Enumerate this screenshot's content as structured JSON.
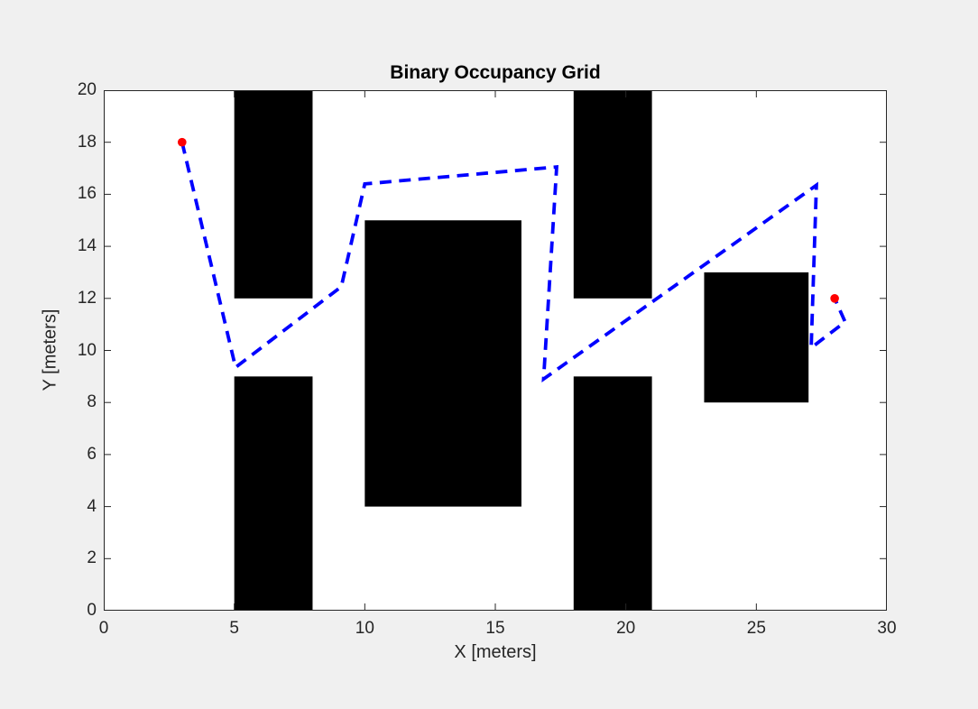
{
  "figure": {
    "background_color": "#F0F0F0",
    "plot_background_color": "#FFFFFF",
    "axis_color": "#262626",
    "text_color": "#262626",
    "title_color": "#000000"
  },
  "chart_data": {
    "type": "line",
    "title": "Binary Occupancy Grid",
    "xlabel": "X [meters]",
    "ylabel": "Y [meters]",
    "xlim": [
      0,
      30
    ],
    "ylim": [
      0,
      20
    ],
    "xticks": [
      0,
      5,
      10,
      15,
      20,
      25,
      30
    ],
    "yticks": [
      0,
      2,
      4,
      6,
      8,
      10,
      12,
      14,
      16,
      18,
      20
    ],
    "grid": false,
    "legend": null,
    "tick_direction": "in",
    "box": true,
    "series": [
      {
        "name": "planned-path",
        "line_style": "dashed",
        "color": "#0000FF",
        "points": [
          [
            3.0,
            18.0
          ],
          [
            5.05,
            9.35
          ],
          [
            9.1,
            12.45
          ],
          [
            10.0,
            16.4
          ],
          [
            17.35,
            17.05
          ],
          [
            16.85,
            8.9
          ],
          [
            27.3,
            16.35
          ],
          [
            27.1,
            10.1
          ],
          [
            28.4,
            11.1
          ],
          [
            28.0,
            12.0
          ]
        ]
      }
    ],
    "markers": [
      {
        "name": "start-marker",
        "x": 3,
        "y": 18,
        "color": "#FF0000"
      },
      {
        "name": "goal-marker",
        "x": 28,
        "y": 12,
        "color": "#FF0000"
      }
    ],
    "obstacle_color": "#000000",
    "obstacles": [
      {
        "x": 5,
        "y": 12,
        "w": 3,
        "h": 8
      },
      {
        "x": 5,
        "y": 0,
        "w": 3,
        "h": 9
      },
      {
        "x": 10,
        "y": 4,
        "w": 6,
        "h": 11
      },
      {
        "x": 18,
        "y": 12,
        "w": 3,
        "h": 8
      },
      {
        "x": 18,
        "y": 0,
        "w": 3,
        "h": 9
      },
      {
        "x": 23,
        "y": 8,
        "w": 4,
        "h": 5
      }
    ]
  }
}
